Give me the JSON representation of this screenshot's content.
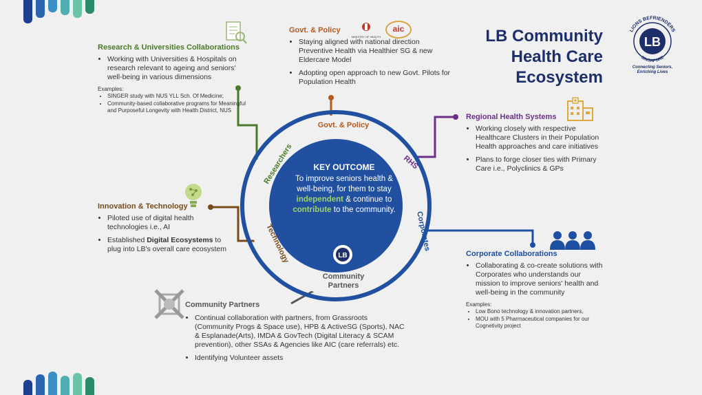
{
  "title": [
    "LB Community",
    "Health Care",
    "Ecosystem"
  ],
  "logo": {
    "arc_text": "LIONS BEFRIENDERS",
    "initials": "LB",
    "sub": "SINGAPORE",
    "tagline": [
      "Connecting Seniors,",
      "Enriching Lives"
    ]
  },
  "research": {
    "heading": "Research & Universities Collaborations",
    "bullets": [
      "Working with Universities & Hospitals on research relevant to ageing and seniors' well-being in various dimensions"
    ],
    "examples_label": "Examples:",
    "examples": [
      "SINGER study with NUS YLL Sch. Of Medicine;",
      "Community-based collaborative programs for Meaningful and Purposeful Longevity with Health District, NUS"
    ]
  },
  "govt": {
    "heading": "Govt. & Policy",
    "bullets": [
      "Staying aligned with national direction Preventive Health via Healthier SG & new Eldercare Model",
      "Adopting open approach to new Govt. Pilots for Population Health"
    ],
    "logo1": "MINISTRY OF HEALTH",
    "logo2": "aic"
  },
  "rhs": {
    "heading": "Regional Health Systems",
    "bullets": [
      "Working closely with respective Healthcare Clusters in their Population Health approaches and care initiatives",
      "Plans to forge closer ties with Primary Care i.e., Polyclinics & GPs"
    ]
  },
  "innovation": {
    "heading": "Innovation & Technology",
    "bullets": [
      "Piloted use of digital health technologies i.e., AI"
    ],
    "bullet2_pre": "Established ",
    "bullet2_bold": "Digital Ecosystems",
    "bullet2_post": " to plug into LB's overall care ecosystem"
  },
  "corporate": {
    "heading": "Corporate Collaborations",
    "bullets": [
      "Collaborating & co-create solutions with Corporates who understands our mission to improve seniors' health and well-being in the community"
    ],
    "examples_label": "Examples:",
    "examples": [
      "Low Bono technology & innovation partners,",
      "MOU with 5 Pharmaceutical companies for our Cognetivity project"
    ]
  },
  "community": {
    "heading": "Community Partners",
    "bullets": [
      "Continual collaboration with partners, from Grassroots (Community Progs & Space use), HPB & ActiveSG (Sports), NAC & Esplanade(Arts), IMDA & GovTech (Digital Literacy & SCAM prevention), other SSAs & Agencies like AIC (care referrals) etc.",
      "Identifying Volunteer assets"
    ]
  },
  "ring_labels": {
    "govt": "Govt. & Policy",
    "researchers": "Researchers",
    "rhs": "RHS",
    "corporates": "Corporates",
    "technology": "Technology",
    "community": [
      "Community",
      "Partners"
    ]
  },
  "center": {
    "heading": "KEY OUTCOME",
    "line1": "To improve seniors health &",
    "line2": "well-being, for them to stay",
    "w_independent": "independent",
    "w_mid": " & continue to",
    "w_contribute": "contribute",
    "w_end": " to the community."
  },
  "colors": {
    "navy": "#1d2f6b",
    "circle": "#2150a0",
    "green": "#4a7a2a",
    "orange": "#b5581b",
    "purple": "#6b2f8a",
    "blue": "#1f4fa3",
    "brown": "#7a4a1a",
    "highlight": "#9ed36a"
  }
}
